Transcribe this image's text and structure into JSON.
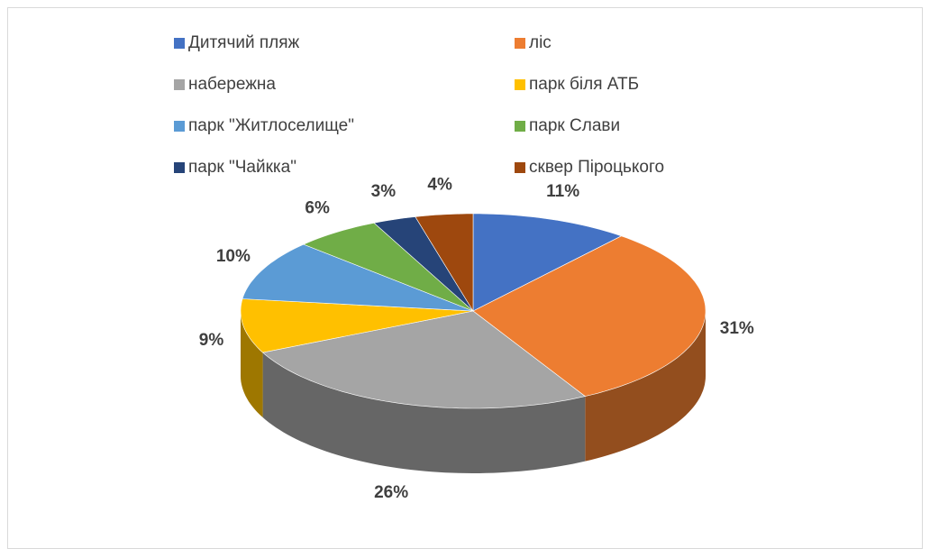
{
  "chart_data": {
    "type": "pie",
    "categories": [
      "Дитячий пляж",
      "ліс",
      "набережна",
      "парк біля АТБ",
      "парк \"Житлоселище\"",
      "парк Слави",
      "парк \"Чайкка\"",
      "сквер Піроцького"
    ],
    "values": [
      11,
      31,
      26,
      9,
      10,
      6,
      3,
      4
    ],
    "value_labels": [
      "11%",
      "31%",
      "26%",
      "9%",
      "10%",
      "6%",
      "3%",
      "4%"
    ],
    "colors": [
      "#4472c4",
      "#ed7d31",
      "#a5a5a5",
      "#ffc000",
      "#5b9bd5",
      "#70ad47",
      "#264478",
      "#9e480e"
    ]
  }
}
